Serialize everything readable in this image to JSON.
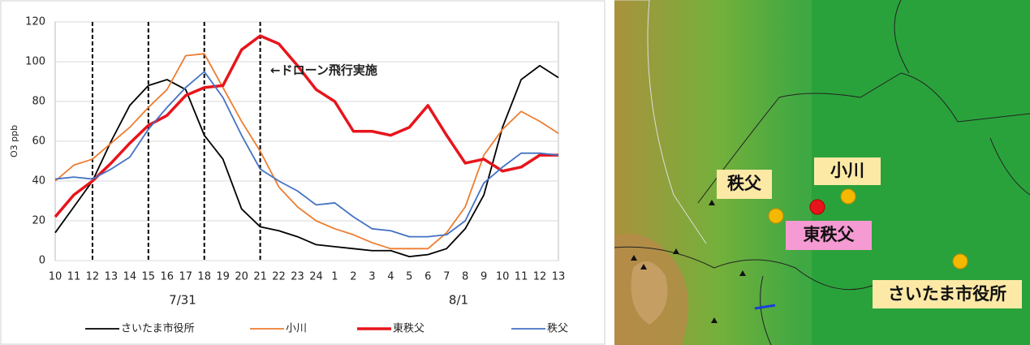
{
  "chart_data": {
    "type": "line",
    "y_label": "O3 ppb",
    "annotation": "←ドローン飛行実施",
    "date_labels": [
      "7/31",
      "8/1"
    ],
    "categories": [
      "10",
      "11",
      "12",
      "13",
      "14",
      "15",
      "16",
      "17",
      "18",
      "19",
      "20",
      "21",
      "22",
      "23",
      "24",
      "1",
      "2",
      "3",
      "4",
      "5",
      "6",
      "7",
      "8",
      "9",
      "10",
      "11",
      "12",
      "13"
    ],
    "vlines": [
      "12",
      "15",
      "18",
      "21"
    ],
    "ylim": [
      0,
      120
    ],
    "yticks": [
      0,
      20,
      40,
      60,
      80,
      100,
      120
    ],
    "grid": true,
    "series": [
      {
        "name": "さいたま市役所",
        "color": "#000000",
        "width": 1.8,
        "values": [
          14,
          27,
          40,
          60,
          78,
          88,
          91,
          86,
          63,
          51,
          26,
          17,
          15,
          12,
          8,
          7,
          6,
          5,
          5,
          2,
          3,
          6,
          16,
          33,
          67,
          91,
          98,
          92
        ]
      },
      {
        "name": "小川",
        "color": "#ed7d31",
        "width": 1.8,
        "values": [
          40,
          48,
          51,
          59,
          67,
          77,
          86,
          103,
          104,
          87,
          70,
          55,
          37,
          27,
          20,
          16,
          13,
          9,
          6,
          6,
          6,
          14,
          27,
          53,
          66,
          75,
          70,
          64
        ]
      },
      {
        "name": "東秩父",
        "color": "#e8141b",
        "width": 3.5,
        "values": [
          22,
          33,
          40,
          49,
          59,
          68,
          73,
          83,
          87,
          88,
          106,
          113,
          109,
          98,
          86,
          80,
          65,
          65,
          63,
          67,
          78,
          63,
          49,
          51,
          45,
          47,
          53,
          53
        ]
      },
      {
        "name": "秩父",
        "color": "#4472c4",
        "width": 1.8,
        "values": [
          41,
          42,
          41,
          46,
          52,
          66,
          77,
          87,
          95,
          82,
          63,
          46,
          40,
          35,
          28,
          29,
          22,
          16,
          15,
          12,
          12,
          13,
          20,
          39,
          47,
          54,
          54,
          53
        ]
      }
    ]
  },
  "map": {
    "labels": [
      "秩父",
      "小川",
      "東秩父",
      "さいたま市役所"
    ]
  }
}
